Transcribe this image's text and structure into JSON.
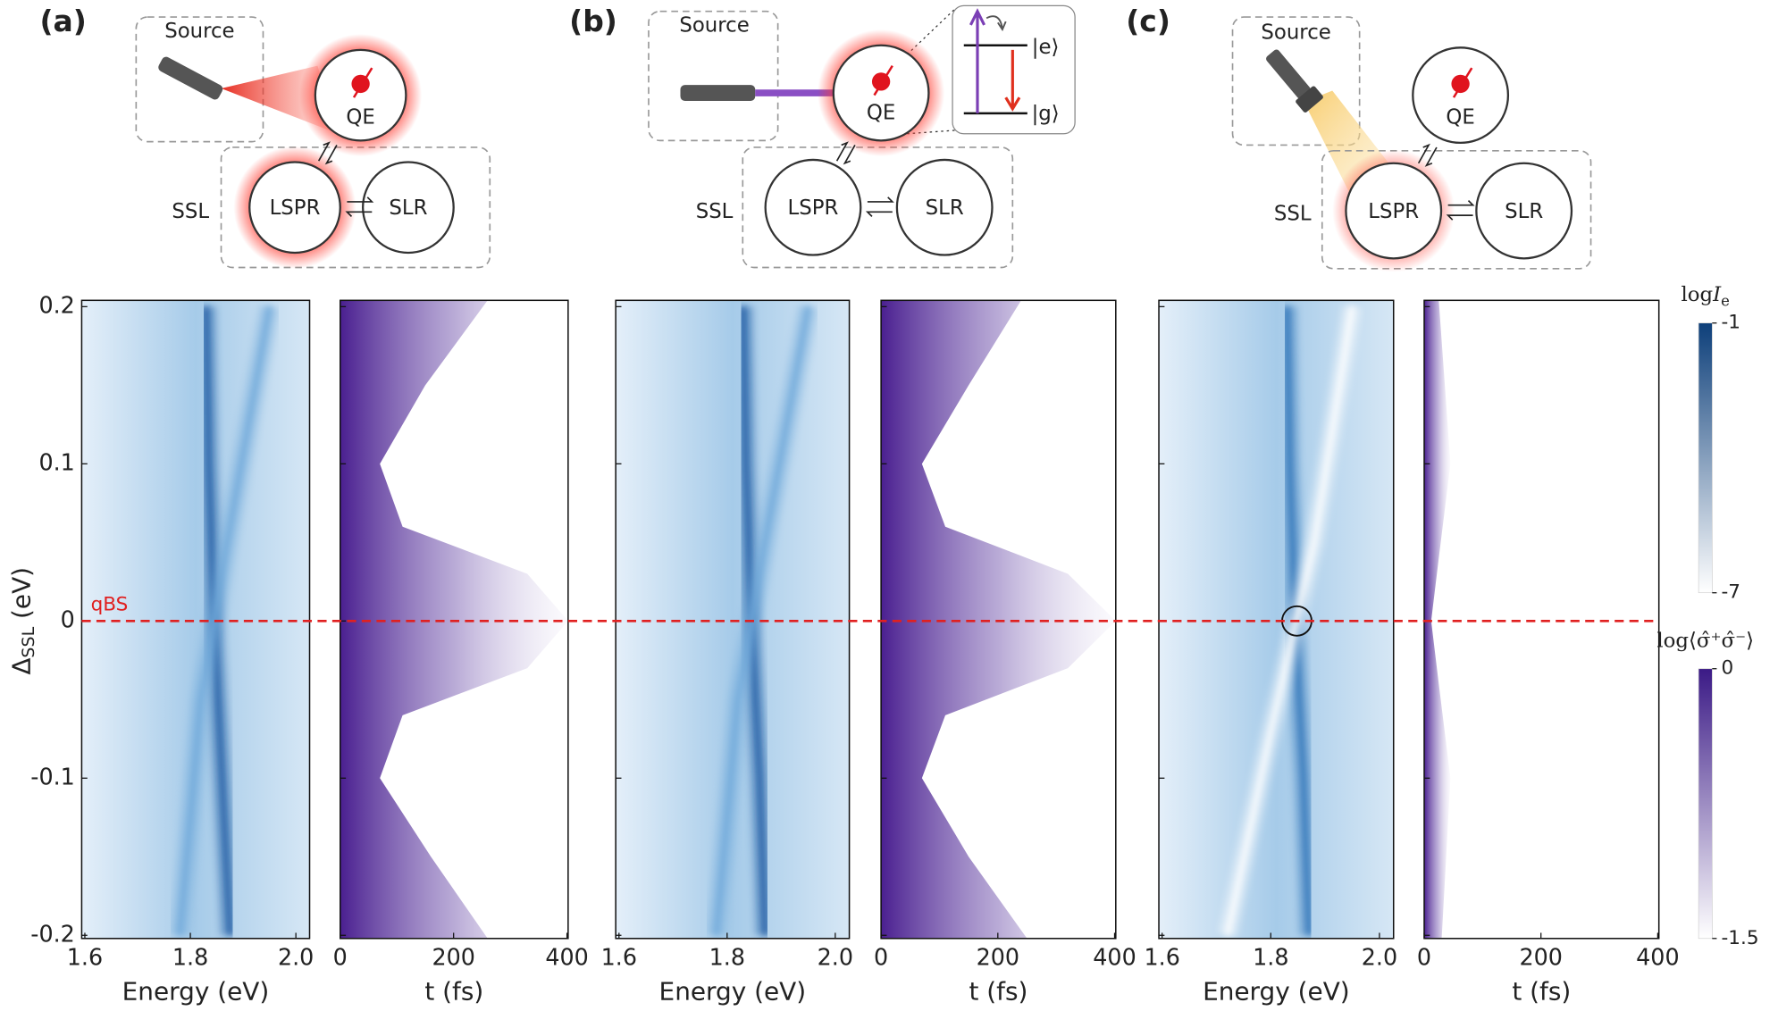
{
  "figure": {
    "panels": [
      {
        "label": "(a)",
        "source": "Source",
        "qe": "QE",
        "ssl": "SSL",
        "lspr": "LSPR",
        "slr": "SLR"
      },
      {
        "label": "(b)",
        "source": "Source",
        "qe": "QE",
        "ssl": "SSL",
        "lspr": "LSPR",
        "slr": "SLR",
        "levels": [
          "|e⟩",
          "|g⟩"
        ]
      },
      {
        "label": "(c)",
        "source": "Source",
        "qe": "QE",
        "ssl": "SSL",
        "lspr": "LSPR",
        "slr": "SLR"
      }
    ]
  },
  "reference_line": {
    "value": 0,
    "label": "qBS",
    "color": "#e02020"
  },
  "colorbars": [
    {
      "label": {
        "text": "log",
        "var": "I",
        "sub": "e"
      },
      "lim": [
        -7,
        -1
      ],
      "ticks": [
        -1,
        -7
      ],
      "colors": [
        "#ffffff",
        "#0d3f7a"
      ]
    },
    {
      "label": {
        "text": "log⟨σ̂⁺σ̂⁻⟩"
      },
      "lim": [
        -1.5,
        0
      ],
      "ticks": [
        0,
        -1.5
      ],
      "colors": [
        "#ffffff",
        "#3b1a86"
      ]
    }
  ],
  "chart_data": [
    {
      "type": "heatmap",
      "colormap": "blue",
      "xlabel": "Energy (eV)",
      "ylabel": {
        "symbol": "Δ",
        "sub": "SSL",
        "unit": " (eV)"
      },
      "xlim": [
        1.594,
        2.026
      ],
      "xticks": [
        1.6,
        1.8,
        {
          "value": 2,
          "label": "2.0"
        }
      ],
      "ylim": [
        -0.202,
        0.204
      ],
      "yticks": [
        0.2,
        0.1,
        0,
        -0.1,
        -0.2
      ],
      "ridges": [
        {
          "color": "#1a5aa3",
          "points": [
            [
              1.875,
              -0.2
            ],
            [
              1.86,
              -0.1
            ],
            [
              1.845,
              0
            ],
            [
              1.835,
              0.1
            ],
            [
              1.83,
              0.2
            ]
          ]
        },
        {
          "color": "#6fa9da",
          "points": [
            [
              1.78,
              -0.2
            ],
            [
              1.82,
              -0.05
            ],
            [
              1.87,
              0.05
            ],
            [
              1.95,
              0.2
            ]
          ]
        }
      ]
    },
    {
      "type": "decay",
      "colormap": "purple",
      "xlabel": "t (fs)",
      "xlim": [
        0,
        402
      ],
      "xticks": [
        0,
        200,
        400
      ],
      "ylim": [
        -0.202,
        0.204
      ],
      "yticks": [
        0.2,
        0.1,
        0,
        -0.1,
        -0.2
      ],
      "profile": [
        [
          0.204,
          260
        ],
        [
          0.15,
          150
        ],
        [
          0.1,
          70
        ],
        [
          0.06,
          110
        ],
        [
          0.03,
          330
        ],
        [
          0,
          402
        ],
        [
          -0.03,
          330
        ],
        [
          -0.06,
          110
        ],
        [
          -0.1,
          70
        ],
        [
          -0.15,
          160
        ],
        [
          -0.202,
          260
        ]
      ]
    },
    {
      "type": "heatmap",
      "colormap": "blue",
      "xlabel": "Energy (eV)",
      "xlim": [
        1.594,
        2.026
      ],
      "xticks": [
        1.6,
        1.8,
        {
          "value": 2,
          "label": "2.0"
        }
      ],
      "ylim": [
        -0.202,
        0.204
      ],
      "yticks": [
        0.2,
        0.1,
        0,
        -0.1,
        -0.2
      ],
      "ridges": [
        {
          "color": "#1a5aa3",
          "points": [
            [
              1.87,
              -0.2
            ],
            [
              1.86,
              -0.1
            ],
            [
              1.845,
              0
            ],
            [
              1.835,
              0.1
            ],
            [
              1.83,
              0.2
            ]
          ]
        },
        {
          "color": "#6fa9da",
          "points": [
            [
              1.78,
              -0.2
            ],
            [
              1.82,
              -0.05
            ],
            [
              1.87,
              0.05
            ],
            [
              1.95,
              0.2
            ]
          ]
        }
      ]
    },
    {
      "type": "decay",
      "colormap": "purple",
      "xlabel": "t (fs)",
      "xlim": [
        0,
        402
      ],
      "xticks": [
        0,
        200,
        400
      ],
      "ylim": [
        -0.202,
        0.204
      ],
      "yticks": [
        0.2,
        0.1,
        0,
        -0.1,
        -0.2
      ],
      "profile": [
        [
          0.204,
          240
        ],
        [
          0.15,
          150
        ],
        [
          0.1,
          70
        ],
        [
          0.06,
          110
        ],
        [
          0.03,
          320
        ],
        [
          0,
          402
        ],
        [
          -0.03,
          320
        ],
        [
          -0.06,
          110
        ],
        [
          -0.1,
          70
        ],
        [
          -0.15,
          150
        ],
        [
          -0.202,
          250
        ]
      ]
    },
    {
      "type": "heatmap",
      "colormap": "blue",
      "xlabel": "Energy (eV)",
      "xlim": [
        1.594,
        2.026
      ],
      "xticks": [
        1.6,
        1.8,
        {
          "value": 2,
          "label": "2.0"
        }
      ],
      "ylim": [
        -0.202,
        0.204
      ],
      "yticks": [
        0.2,
        0.1,
        0,
        -0.1,
        -0.2
      ],
      "ridges": [
        {
          "color": "#2d73b8",
          "points": [
            [
              1.87,
              -0.2
            ],
            [
              1.86,
              -0.1
            ],
            [
              1.845,
              0
            ],
            [
              1.835,
              0.1
            ],
            [
              1.83,
              0.2
            ]
          ]
        },
        {
          "color": "#ffffff",
          "points": [
            [
              1.72,
              -0.2
            ],
            [
              1.8,
              -0.07
            ],
            [
              1.88,
              0.05
            ],
            [
              1.95,
              0.2
            ]
          ]
        }
      ],
      "marker": {
        "x": 1.848,
        "y": 0
      }
    },
    {
      "type": "decay",
      "colormap": "purple",
      "xlabel": "t (fs)",
      "xlim": [
        0,
        402
      ],
      "xticks": [
        0,
        200,
        400
      ],
      "ylim": [
        -0.202,
        0.204
      ],
      "yticks": [
        0.2,
        0.1,
        0,
        -0.1,
        -0.2
      ],
      "profile": [
        [
          0.204,
          25
        ],
        [
          0.1,
          45
        ],
        [
          0.04,
          25
        ],
        [
          0,
          12
        ],
        [
          -0.04,
          25
        ],
        [
          -0.1,
          45
        ],
        [
          -0.202,
          30
        ]
      ]
    }
  ]
}
